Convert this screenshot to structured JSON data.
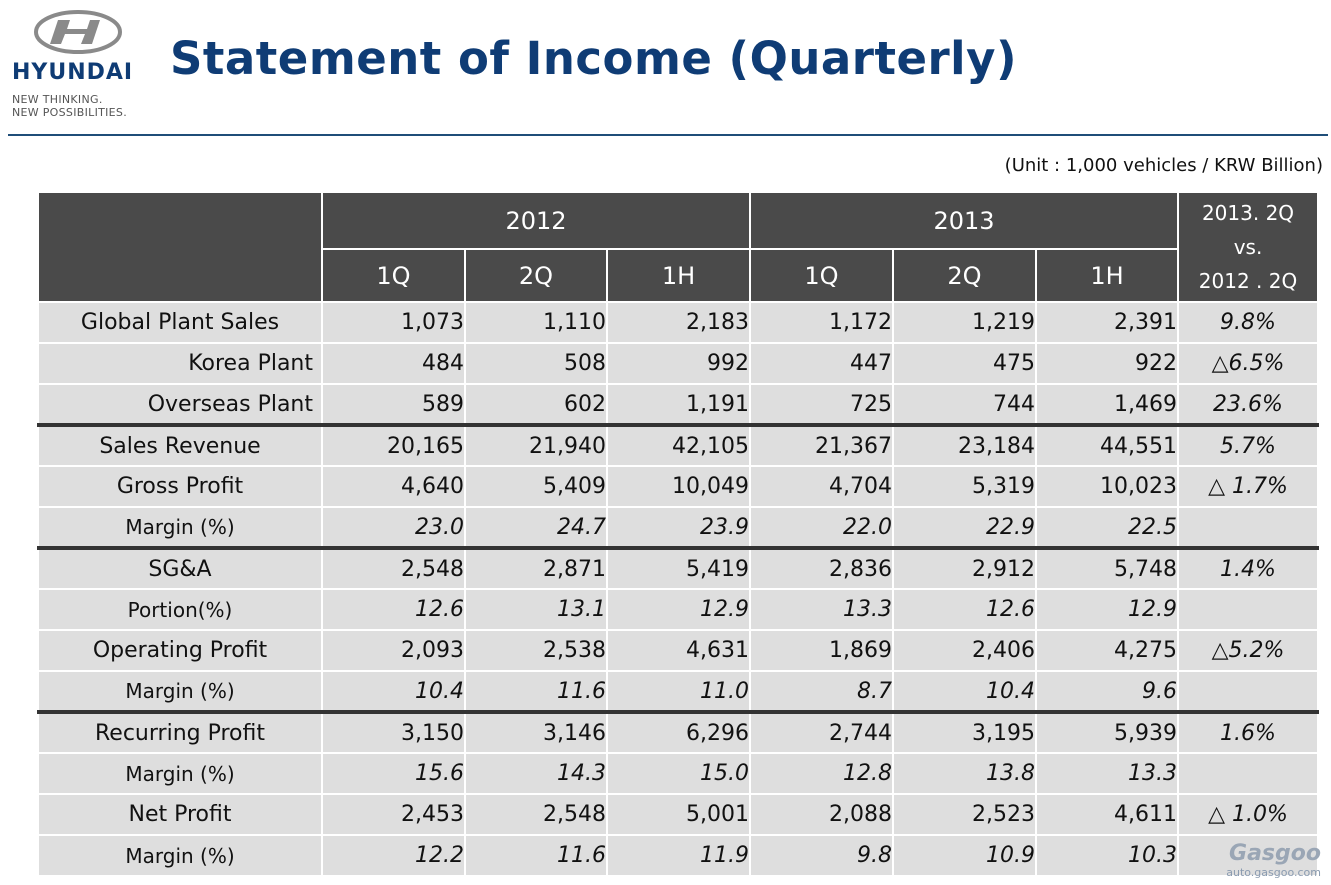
{
  "logo": {
    "brand": "HYUNDAI",
    "tagline1": "NEW THINKING.",
    "tagline2": "NEW POSSIBILITIES."
  },
  "title": "Statement of Income (Quarterly)",
  "unit": "(Unit : 1,000 vehicles / KRW Billion)",
  "table": {
    "year1": "2012",
    "year2": "2013",
    "compare_header": [
      "2013.  2Q",
      "vs.",
      "2012 . 2Q"
    ],
    "subcols": [
      "1Q",
      "2Q",
      "1H",
      "1Q",
      "2Q",
      "1H"
    ],
    "rows": [
      {
        "label": "Global Plant Sales",
        "indent": "center",
        "italic": false,
        "sep": false,
        "values": [
          "1,073",
          "1,110",
          "2,183",
          "1,172",
          "1,219",
          "2,391"
        ],
        "compare": "9.8%"
      },
      {
        "label": "Korea Plant",
        "indent": "right",
        "italic": false,
        "sep": false,
        "values": [
          "484",
          "508",
          "992",
          "447",
          "475",
          "922"
        ],
        "compare": "△6.5%"
      },
      {
        "label": "Overseas Plant",
        "indent": "right",
        "italic": false,
        "sep": false,
        "values": [
          "589",
          "602",
          "1,191",
          "725",
          "744",
          "1,469"
        ],
        "compare": "23.6%"
      },
      {
        "label": "Sales Revenue",
        "indent": "center",
        "italic": false,
        "sep": true,
        "values": [
          "20,165",
          "21,940",
          "42,105",
          "21,367",
          "23,184",
          "44,551"
        ],
        "compare": "5.7%"
      },
      {
        "label": "Gross Profit",
        "indent": "center",
        "italic": false,
        "sep": false,
        "values": [
          "4,640",
          "5,409",
          "10,049",
          "4,704",
          "5,319",
          "10,023"
        ],
        "compare": "△ 1.7%"
      },
      {
        "label": "Margin (%)",
        "indent": "small",
        "italic": true,
        "sep": false,
        "values": [
          "23.0",
          "24.7",
          "23.9",
          "22.0",
          "22.9",
          "22.5"
        ],
        "compare": ""
      },
      {
        "label": "SG&A",
        "indent": "center",
        "italic": false,
        "sep": true,
        "values": [
          "2,548",
          "2,871",
          "5,419",
          "2,836",
          "2,912",
          "5,748"
        ],
        "compare": "1.4%"
      },
      {
        "label": "Portion(%)",
        "indent": "small",
        "italic": true,
        "sep": false,
        "values": [
          "12.6",
          "13.1",
          "12.9",
          "13.3",
          "12.6",
          "12.9"
        ],
        "compare": ""
      },
      {
        "label": "Operating Profit",
        "indent": "center",
        "italic": false,
        "sep": false,
        "values": [
          "2,093",
          "2,538",
          "4,631",
          "1,869",
          "2,406",
          "4,275"
        ],
        "compare": "△5.2%"
      },
      {
        "label": "Margin (%)",
        "indent": "small",
        "italic": true,
        "sep": false,
        "values": [
          "10.4",
          "11.6",
          "11.0",
          "8.7",
          "10.4",
          "9.6"
        ],
        "compare": ""
      },
      {
        "label": "Recurring Profit",
        "indent": "center",
        "italic": false,
        "sep": true,
        "values": [
          "3,150",
          "3,146",
          "6,296",
          "2,744",
          "3,195",
          "5,939"
        ],
        "compare": "1.6%"
      },
      {
        "label": "Margin (%)",
        "indent": "small",
        "italic": true,
        "sep": false,
        "values": [
          "15.6",
          "14.3",
          "15.0",
          "12.8",
          "13.8",
          "13.3"
        ],
        "compare": ""
      },
      {
        "label": "Net Profit",
        "indent": "center",
        "italic": false,
        "sep": false,
        "values": [
          "2,453",
          "2,548",
          "5,001",
          "2,088",
          "2,523",
          "4,611"
        ],
        "compare": "△ 1.0%"
      },
      {
        "label": "Margin (%)",
        "indent": "small",
        "italic": true,
        "sep": false,
        "values": [
          "12.2",
          "11.6",
          "11.9",
          "9.8",
          "10.9",
          "10.3"
        ],
        "compare": ""
      }
    ]
  },
  "watermark": {
    "line1": "Gasgoo",
    "line2": "auto.gasgoo.com"
  }
}
